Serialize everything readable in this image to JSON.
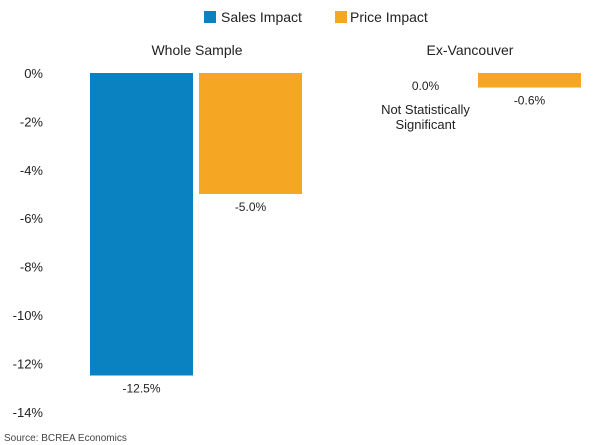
{
  "chart_data": {
    "type": "bar",
    "categories": [
      "Whole Sample",
      "Ex-Vancouver"
    ],
    "series": [
      {
        "name": "Sales Impact",
        "color": "#0a82c1",
        "values": [
          -12.5,
          0.0
        ]
      },
      {
        "name": "Price Impact",
        "color": "#f5a623",
        "values": [
          -5.0,
          -0.6
        ]
      }
    ],
    "data_labels": [
      [
        "-12.5%",
        "0.0%"
      ],
      [
        "-5.0%",
        "-0.6%"
      ]
    ],
    "annotations": [
      "Not Statistically",
      "Significant"
    ],
    "y_ticks": [
      0,
      -2,
      -4,
      -6,
      -8,
      -10,
      -12,
      -14
    ],
    "y_tick_labels": [
      "0%",
      "-2%",
      "-4%",
      "-6%",
      "-8%",
      "-10%",
      "-12%",
      "-14%"
    ],
    "ylim": [
      -14,
      0
    ],
    "legend_position": "top-center",
    "grid": false,
    "title": "",
    "xlabel": "",
    "ylabel": "",
    "source": "Source: BCREA Economics"
  }
}
